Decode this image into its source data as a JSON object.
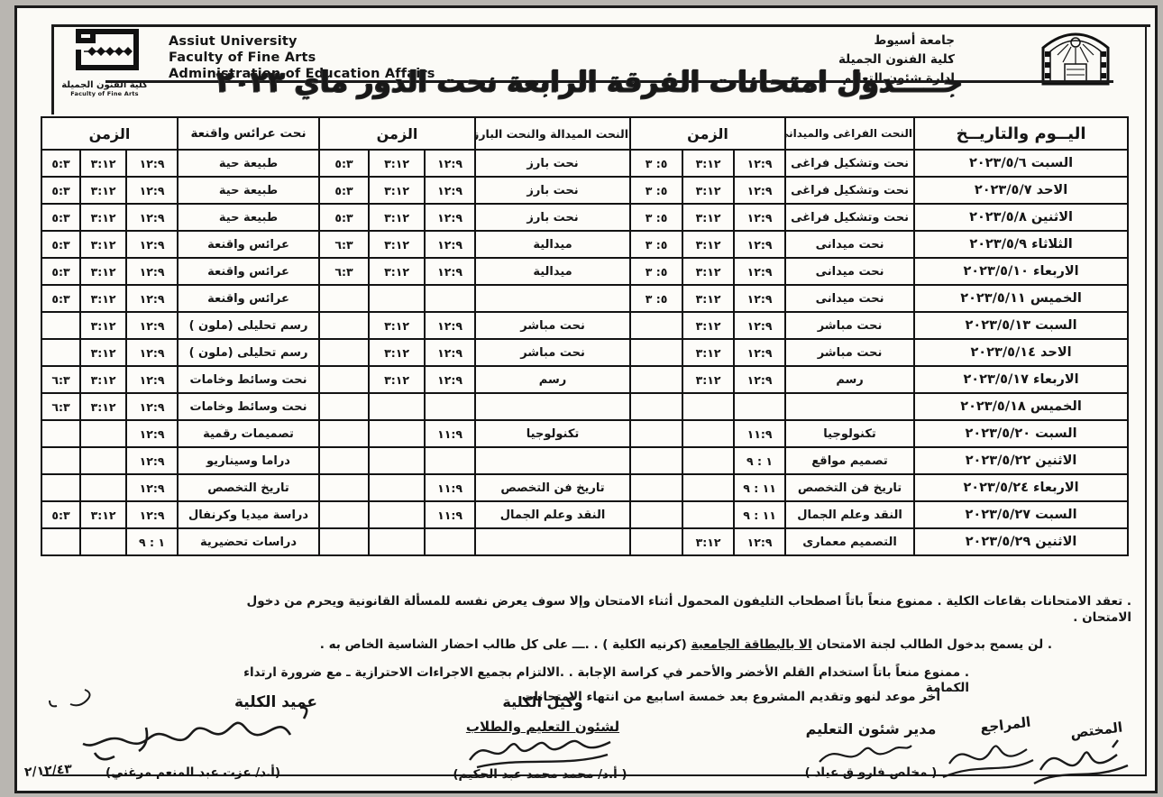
{
  "header": {
    "english_lines": [
      "Assiut University",
      "Faculty of Fine Arts",
      "Administration of Education Affairs"
    ],
    "arabic_lines": [
      "جامعة أسيوط",
      "كلية الفنون الجميلة",
      "إدارة شئون التعليم"
    ],
    "left_logo_caption_ar": "كلية الفنون الجميلة",
    "left_logo_caption_en": "Faculty of Fine Arts",
    "title": "جـــــدول امتحانات الفرقة الرابعة نحت الدور ماي ٢٠٢٣"
  },
  "table": {
    "headers": {
      "day": "اليــوم والتاريــخ",
      "subject1": "النحت الفراغى والميدانى",
      "subject2": "النحت الميدالة والنحت البارز",
      "subject3": "نحت عرائس  واقنعة",
      "time": "الزمن"
    },
    "rows": [
      [
        "السبت ٢٠٢٣/٥/٦",
        "نحت وتشكيل فراغى",
        "١٢:٩",
        "٣:١٢",
        "٥: ٣",
        "نحت بارز",
        "١٢:٩",
        "٣:١٢",
        "٥:٣",
        "طبيعة حية",
        "١٢:٩",
        "٣:١٢",
        "٥:٣"
      ],
      [
        "الاحد ٢٠٢٣/٥/٧",
        "نحت وتشكيل فراغى",
        "١٢:٩",
        "٣:١٢",
        "٥: ٣",
        "نحت بارز",
        "١٢:٩",
        "٣:١٢",
        "٥:٣",
        "طبيعة حية",
        "١٢:٩",
        "٣:١٢",
        "٥:٣"
      ],
      [
        "الاثنين ٢٠٢٣/٥/٨",
        "نحت وتشكيل فراغى",
        "١٢:٩",
        "٣:١٢",
        "٥: ٣",
        "نحت بارز",
        "١٢:٩",
        "٣:١٢",
        "٥:٣",
        "طبيعة حية",
        "١٢:٩",
        "٣:١٢",
        "٥:٣"
      ],
      [
        "الثلاثاء ٢٠٢٣/٥/٩",
        "نحت ميدانى",
        "١٢:٩",
        "٣:١٢",
        "٥: ٣",
        "ميدالية",
        "١٢:٩",
        "٣:١٢",
        "٦:٣",
        "عرائس واقنعة",
        "١٢:٩",
        "٣:١٢",
        "٥:٣"
      ],
      [
        "الاربعاء ٢٠٢٣/٥/١٠",
        "نحت ميدانى",
        "١٢:٩",
        "٣:١٢",
        "٥: ٣",
        "ميدالية",
        "١٢:٩",
        "٣:١٢",
        "٦:٣",
        "عرائس واقنعة",
        "١٢:٩",
        "٣:١٢",
        "٥:٣"
      ],
      [
        "الخميس ٢٠٢٣/٥/١١",
        "نحت ميدانى",
        "١٢:٩",
        "٣:١٢",
        "٥: ٣",
        "",
        "",
        "",
        "",
        "عرائس واقنعة",
        "١٢:٩",
        "٣:١٢",
        "٥:٣"
      ],
      [
        "السبت ٢٠٢٣/٥/١٣",
        "نحت مباشر",
        "١٢:٩",
        "٣:١٢",
        "",
        "نحت مباشر",
        "١٢:٩",
        "٣:١٢",
        "",
        "رسم تحليلى (ملون )",
        "١٢:٩",
        "٣:١٢",
        ""
      ],
      [
        "الاحد ٢٠٢٣/٥/١٤",
        "نحت مباشر",
        "١٢:٩",
        "٣:١٢",
        "",
        "نحت مباشر",
        "١٢:٩",
        "٣:١٢",
        "",
        "رسم تحليلى (ملون )",
        "١٢:٩",
        "٣:١٢",
        ""
      ],
      [
        "الاربعاء ٢٠٢٣/٥/١٧",
        "رسم",
        "١٢:٩",
        "٣:١٢",
        "",
        "رسم",
        "١٢:٩",
        "٣:١٢",
        "",
        "نحت وسائط وخامات",
        "١٢:٩",
        "٣:١٢",
        "٦:٣"
      ],
      [
        "الخميس ٢٠٢٣/٥/١٨",
        "",
        "",
        "",
        "",
        "",
        "",
        "",
        "",
        "نحت وسائط وخامات",
        "١٢:٩",
        "٣:١٢",
        "٦:٣"
      ],
      [
        "السبت ٢٠٢٣/٥/٢٠",
        "تكنولوجيا",
        "١١:٩",
        "",
        "",
        "تكنولوجيا",
        "١١:٩",
        "",
        "",
        "تصميمات رقمية",
        "١٢:٩",
        "",
        ""
      ],
      [
        "الاثنين ٢٠٢٣/٥/٢٢",
        "تصميم مواقع",
        "١ : ٩",
        "",
        "",
        "",
        "",
        "",
        "",
        "دراما وسيناريو",
        "١٢:٩",
        "",
        ""
      ],
      [
        "الاربعاء ٢٠٢٣/٥/٢٤",
        "تاريخ فن التخصص",
        "١١ : ٩",
        "",
        "",
        "تاريخ فن التخصص",
        "١١:٩",
        "",
        "",
        "تاريخ التخصص",
        "١٢:٩",
        "",
        ""
      ],
      [
        "السبت ٢٠٢٣/٥/٢٧",
        "النقد وعلم الجمال",
        "١١ : ٩",
        "",
        "",
        "النقد وعلم الجمال",
        "١١:٩",
        "",
        "",
        "دراسة ميديا وكرنفال",
        "١٢:٩",
        "٣:١٢",
        "٥:٣"
      ],
      [
        "الاثنين ٢٠٢٣/٥/٢٩",
        "التصميم معمارى",
        "١٢:٩",
        "٣:١٢",
        "",
        "",
        "",
        "",
        "",
        "دراسات تحضيرية",
        "١ : ٩",
        "",
        ""
      ]
    ]
  },
  "notes": [
    {
      "text": "تعقد الامتحانات بقاعات الكلية . ممنوع منعاً باتاً اصطحاب التليفون المحمول أثناء الامتحان وإلا سوف يعرض نفسه للمسألة القانونية ويحرم  من دخول الامتحان ."
    },
    {
      "prefix": "لن يسمح بدخول الطالب لجنة الامتحان ",
      "underlined": "الا بالبطاقة الجامعية",
      "suffix": " (كرنيه الكلية ) . .ـــ  على كل طالب احضار الشاسية الخاص به ."
    },
    {
      "text": "ممنوع منعاً باتاً استخدام القلم الأخضر والأحمر في كراسة الإجابة . .الالتزام بجميع الاجراءات الاحترازية ـ مع ضرورة ارتداء الكمامة"
    }
  ],
  "deadline_note": "اخر موعد لنهو وتقديم المشروع  بعد خمسة اسابيع من انتهاء الامتحانات",
  "signatures": {
    "specialist_role": "المختص",
    "reviewer_role": "المراجع",
    "director_role": "مدير شئون التعليم",
    "director_name": "( مخلص فارو ق عياد )",
    "vice_dean_role": "وكيل الكلية",
    "vice_dean_role2": "لشئون التعليم والطلاب",
    "vice_dean_name": "( أ.د/ محمد محمد عبد الحكيم)",
    "dean_role": "عميد الكلية",
    "dean_name": "(أ.د/ عزت عبد المنعم مرغني)",
    "dean_handwritten_date": "٢/١٢/٤٣"
  }
}
